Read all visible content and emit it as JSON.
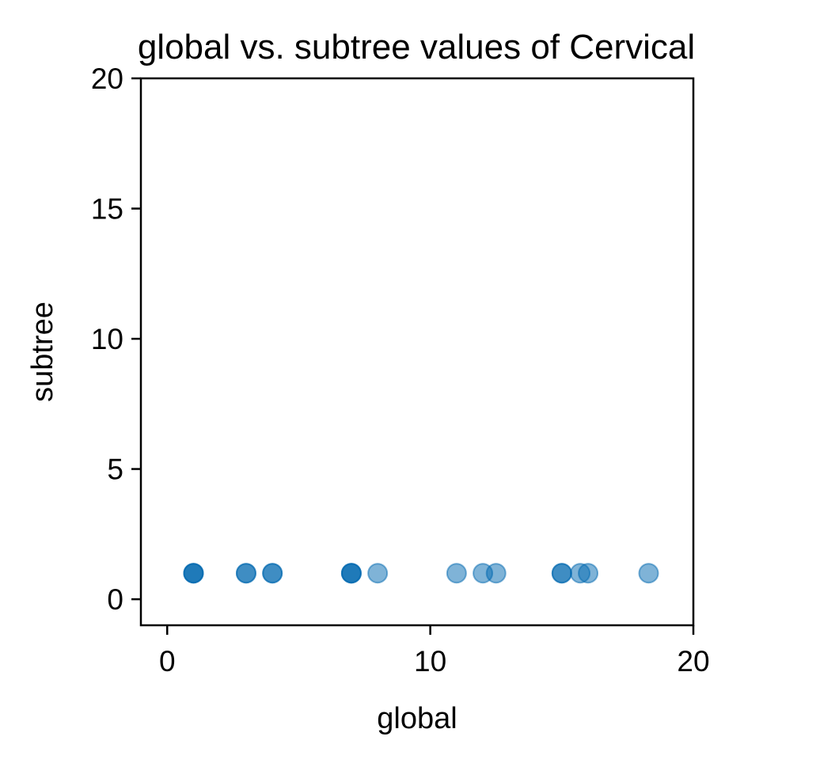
{
  "chart_data": {
    "type": "scatter",
    "title": "global vs. subtree values of Cervical",
    "xlabel": "global",
    "ylabel": "subtree",
    "xlim": [
      -1,
      20
    ],
    "ylim": [
      -1,
      20
    ],
    "xticks": [
      0,
      10,
      20
    ],
    "yticks": [
      0,
      5,
      10,
      15,
      20
    ],
    "grid": false,
    "legend": "none",
    "point_color": "#0068b0",
    "point_opacity": 0.5,
    "series": [
      {
        "points": [
          {
            "x": 1,
            "y": 1
          },
          {
            "x": 1,
            "y": 1
          },
          {
            "x": 1,
            "y": 1
          },
          {
            "x": 3,
            "y": 1
          },
          {
            "x": 3,
            "y": 1
          },
          {
            "x": 4,
            "y": 1
          },
          {
            "x": 4,
            "y": 1
          },
          {
            "x": 7,
            "y": 1
          },
          {
            "x": 7,
            "y": 1
          },
          {
            "x": 7,
            "y": 1
          },
          {
            "x": 8,
            "y": 1
          },
          {
            "x": 11,
            "y": 1
          },
          {
            "x": 12,
            "y": 1
          },
          {
            "x": 12.5,
            "y": 1
          },
          {
            "x": 15,
            "y": 1
          },
          {
            "x": 15,
            "y": 1
          },
          {
            "x": 15.7,
            "y": 1
          },
          {
            "x": 16,
            "y": 1
          },
          {
            "x": 18.3,
            "y": 1
          }
        ]
      }
    ]
  }
}
